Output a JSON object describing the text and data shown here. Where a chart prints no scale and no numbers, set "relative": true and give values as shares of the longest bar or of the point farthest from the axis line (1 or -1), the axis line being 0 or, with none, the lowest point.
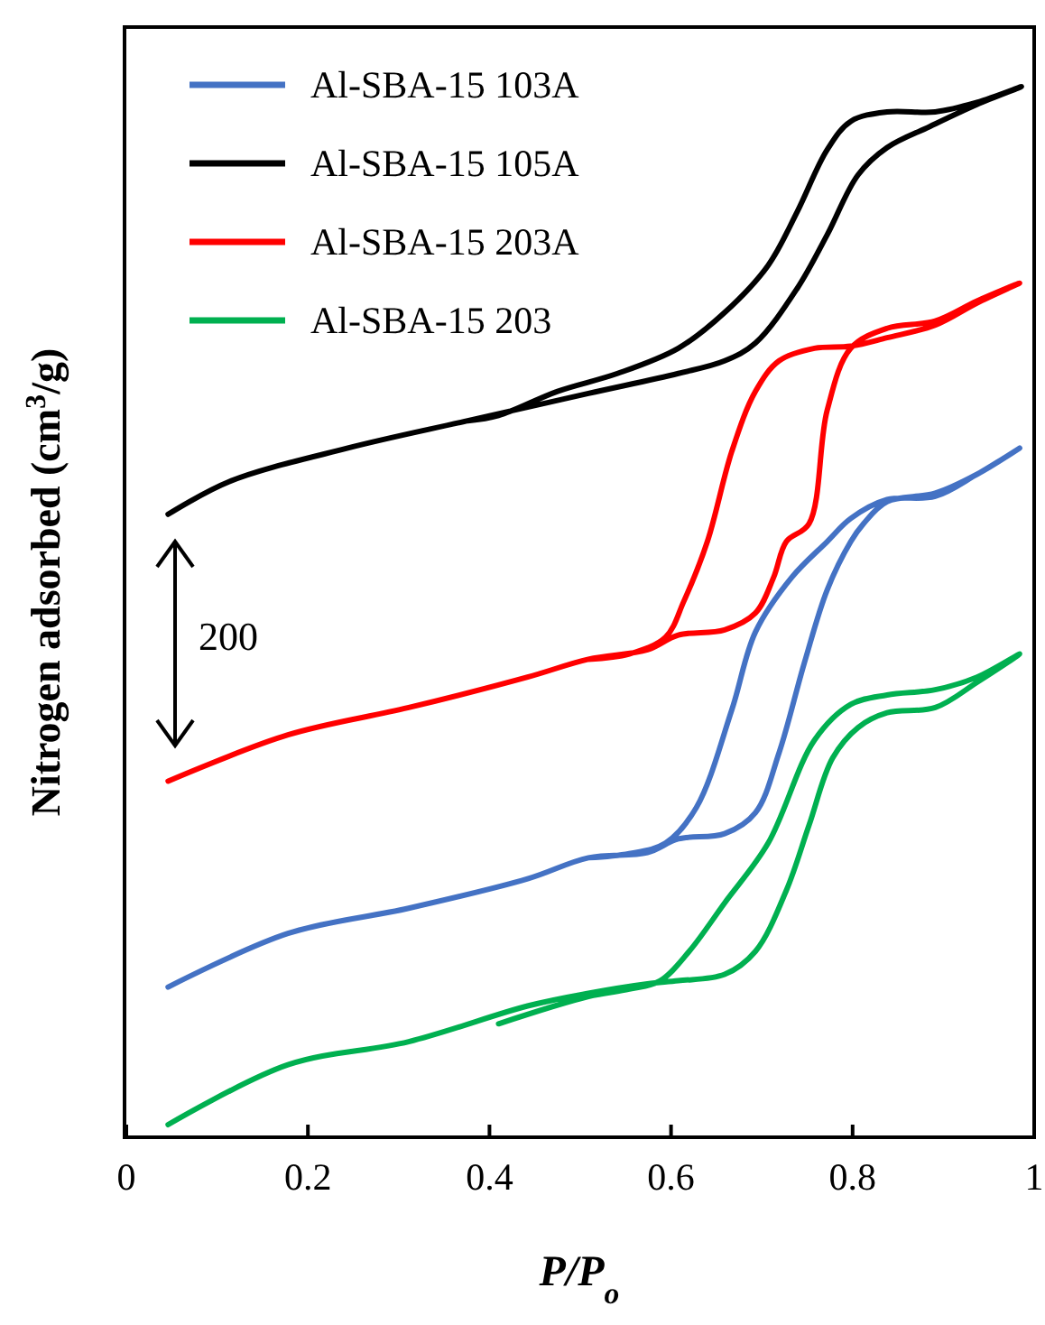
{
  "chart_data": {
    "type": "line",
    "relative": true,
    "xlabel": "P/P$_{o}$",
    "ylabel": "Nitrogen adsorbed  (cm$^{3}$/g)",
    "xlim": [
      0,
      1
    ],
    "xticks": [
      0,
      0.2,
      0.4,
      0.6,
      0.8,
      1
    ],
    "legend": "top left",
    "grid": false,
    "marker": "none",
    "line_style": "solid",
    "annotations": [
      "200"
    ],
    "series": [
      {
        "name": "Al-SBA-15 103A",
        "color": "#4472c4",
        "x": [
          0.046,
          0.178,
          0.311,
          0.442,
          0.509,
          0.574,
          0.608,
          0.659,
          0.693,
          0.719,
          0.747,
          0.772,
          0.798,
          0.812,
          0.838,
          0.891,
          0.937,
          0.984,
          0.937,
          0.891,
          0.838,
          0.798,
          0.772,
          0.733,
          0.693,
          0.667,
          0.628,
          0.594,
          0.554,
          0.509
        ],
        "values": [
          0.143,
          0.194,
          0.218,
          0.246,
          0.266,
          0.271,
          0.284,
          0.289,
          0.309,
          0.366,
          0.452,
          0.521,
          0.567,
          0.584,
          0.605,
          0.613,
          0.631,
          0.656,
          0.631,
          0.61,
          0.607,
          0.589,
          0.567,
          0.533,
          0.481,
          0.407,
          0.314,
          0.28,
          0.27,
          0.266
        ]
      },
      {
        "name": "Al-SBA-15 105A",
        "color": "#000000",
        "x": [
          0.046,
          0.113,
          0.244,
          0.376,
          0.509,
          0.608,
          0.659,
          0.693,
          0.739,
          0.772,
          0.806,
          0.838,
          0.885,
          0.937,
          0.986,
          0.937,
          0.891,
          0.838,
          0.798,
          0.772,
          0.739,
          0.707,
          0.659,
          0.608,
          0.541,
          0.475,
          0.41,
          0.376
        ],
        "values": [
          0.593,
          0.624,
          0.656,
          0.682,
          0.708,
          0.727,
          0.739,
          0.756,
          0.808,
          0.859,
          0.916,
          0.942,
          0.962,
          0.983,
          1.0,
          0.985,
          0.976,
          0.976,
          0.967,
          0.94,
          0.881,
          0.83,
          0.785,
          0.751,
          0.727,
          0.71,
          0.687,
          0.682
        ]
      },
      {
        "name": "Al-SBA-15 203A",
        "color": "#ff0000",
        "x": [
          0.046,
          0.178,
          0.311,
          0.442,
          0.509,
          0.574,
          0.608,
          0.659,
          0.693,
          0.713,
          0.727,
          0.752,
          0.772,
          0.798,
          0.838,
          0.891,
          0.937,
          0.984,
          0.937,
          0.891,
          0.838,
          0.798,
          0.758,
          0.719,
          0.693,
          0.667,
          0.64,
          0.614,
          0.594,
          0.554,
          0.509
        ],
        "values": [
          0.339,
          0.383,
          0.409,
          0.438,
          0.455,
          0.464,
          0.478,
          0.483,
          0.499,
          0.533,
          0.567,
          0.584,
          0.692,
          0.751,
          0.77,
          0.777,
          0.796,
          0.813,
          0.794,
          0.773,
          0.761,
          0.753,
          0.751,
          0.739,
          0.71,
          0.653,
          0.567,
          0.51,
          0.476,
          0.46,
          0.455
        ]
      },
      {
        "name": "Al-SBA-15 203",
        "color": "#00b050",
        "x": [
          0.046,
          0.178,
          0.311,
          0.442,
          0.509,
          0.574,
          0.608,
          0.659,
          0.693,
          0.727,
          0.752,
          0.778,
          0.806,
          0.838,
          0.891,
          0.937,
          0.984,
          0.937,
          0.891,
          0.838,
          0.798,
          0.758,
          0.707,
          0.659,
          0.62,
          0.588,
          0.554,
          0.509,
          0.41
        ],
        "values": [
          0.012,
          0.069,
          0.091,
          0.125,
          0.137,
          0.146,
          0.149,
          0.155,
          0.177,
          0.235,
          0.297,
          0.361,
          0.39,
          0.404,
          0.409,
          0.433,
          0.46,
          0.438,
          0.426,
          0.421,
          0.412,
          0.378,
          0.28,
          0.223,
          0.177,
          0.149,
          0.141,
          0.134,
          0.108
        ]
      }
    ]
  }
}
